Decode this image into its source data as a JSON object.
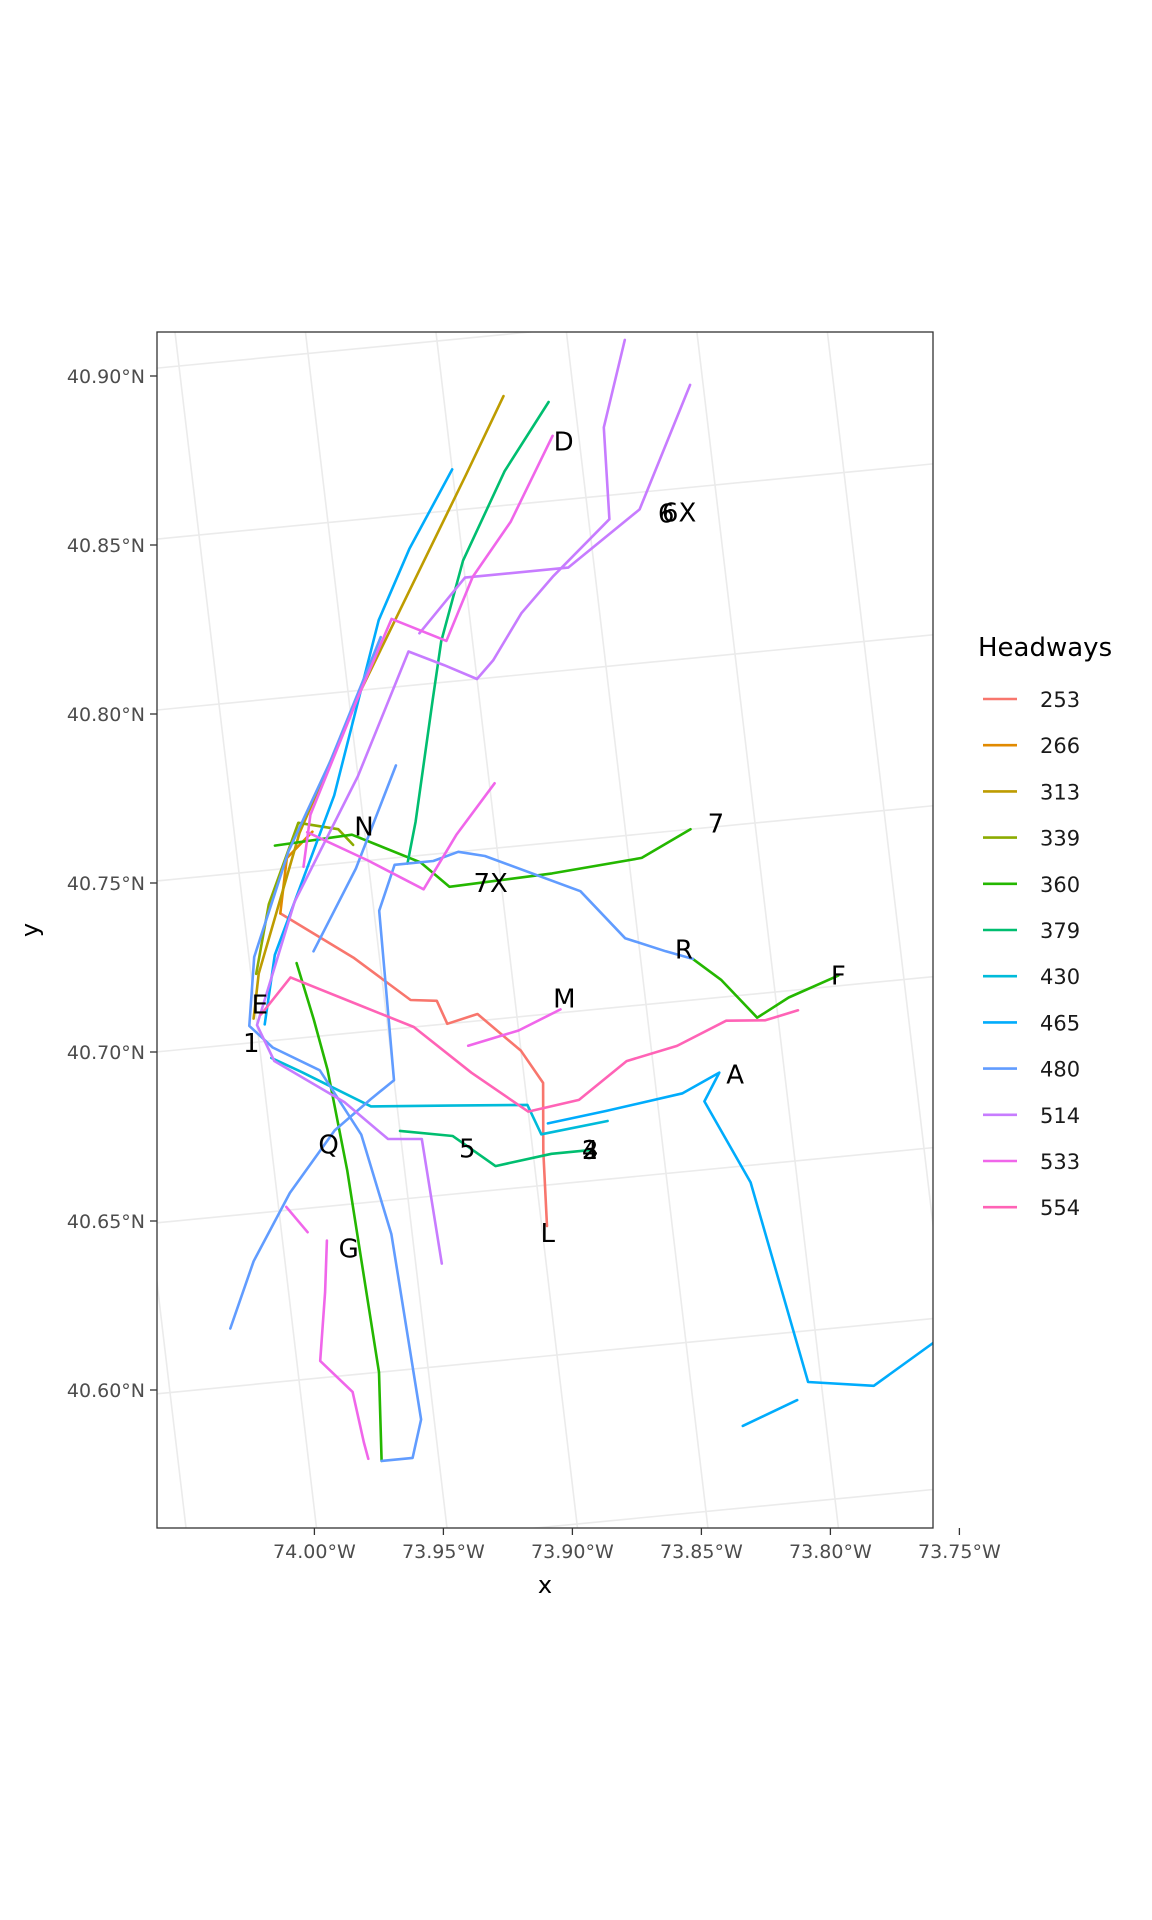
{
  "chart_data": {
    "type": "map",
    "xlabel": "x",
    "ylabel": "y",
    "x_ticks": [
      "74.00°W",
      "73.95°W",
      "73.90°W",
      "73.85°W",
      "73.80°W",
      "73.75°W"
    ],
    "y_ticks": [
      "40.90°N",
      "40.85°N",
      "40.80°N",
      "40.75°N",
      "40.70°N",
      "40.65°N",
      "40.60°N"
    ],
    "grid": true,
    "legend": {
      "title": "Headways",
      "position": "right",
      "entries": [
        {
          "label": "253",
          "color": "#F8766D"
        },
        {
          "label": "266",
          "color": "#E18A00"
        },
        {
          "label": "313",
          "color": "#BE9C00"
        },
        {
          "label": "339",
          "color": "#8CAB00"
        },
        {
          "label": "360",
          "color": "#24B700"
        },
        {
          "label": "379",
          "color": "#00BE70"
        },
        {
          "label": "430",
          "color": "#00BBDA"
        },
        {
          "label": "465",
          "color": "#00ACFC"
        },
        {
          "label": "480",
          "color": "#619CFF"
        },
        {
          "label": "514",
          "color": "#C77CFF"
        },
        {
          "label": "533",
          "color": "#F066EA"
        },
        {
          "label": "554",
          "color": "#FF63B6"
        }
      ]
    },
    "route_labels": [
      {
        "text": "D",
        "lon": -73.856,
        "lat": 40.867
      },
      {
        "text": "6",
        "lon": -73.82,
        "lat": 40.843
      },
      {
        "text": "6X",
        "lon": -73.815,
        "lat": 40.843
      },
      {
        "text": "N",
        "lon": -73.95,
        "lat": 40.76
      },
      {
        "text": "7",
        "lon": -73.815,
        "lat": 40.751
      },
      {
        "text": "7X",
        "lon": -73.904,
        "lat": 40.74
      },
      {
        "text": "R",
        "lon": -73.833,
        "lat": 40.715
      },
      {
        "text": "E",
        "lon": -73.998,
        "lat": 40.711
      },
      {
        "text": "M",
        "lon": -73.881,
        "lat": 40.704
      },
      {
        "text": "F",
        "lon": -73.775,
        "lat": 40.703
      },
      {
        "text": "1",
        "lon": -74.003,
        "lat": 40.7
      },
      {
        "text": "A",
        "lon": -73.819,
        "lat": 40.677
      },
      {
        "text": "Q",
        "lon": -73.978,
        "lat": 40.668
      },
      {
        "text": "5",
        "lon": -73.925,
        "lat": 40.663
      },
      {
        "text": "2",
        "lon": -73.878,
        "lat": 40.659
      },
      {
        "text": "3",
        "lon": -73.878,
        "lat": 40.659
      },
      {
        "text": "4",
        "lon": -73.878,
        "lat": 40.659
      },
      {
        "text": "G",
        "lon": -73.975,
        "lat": 40.637
      },
      {
        "text": "L",
        "lon": -73.898,
        "lat": 40.636
      }
    ],
    "routes": [
      {
        "headway": "253",
        "coords": [
          [
            -73.986,
            40.737
          ],
          [
            -73.96,
            40.722
          ],
          [
            -73.94,
            40.708
          ],
          [
            -73.93,
            40.707
          ],
          [
            -73.927,
            40.7
          ],
          [
            -73.915,
            40.702
          ],
          [
            -73.9,
            40.69
          ],
          [
            -73.893,
            40.68
          ],
          [
            -73.896,
            40.66
          ],
          [
            -73.898,
            40.638
          ]
        ]
      },
      {
        "headway": "266",
        "coords": [
          [
            -73.986,
            40.737
          ],
          [
            -73.981,
            40.753
          ],
          [
            -73.97,
            40.76
          ]
        ]
      },
      {
        "headway": "313",
        "coords": [
          [
            -73.877,
            40.882
          ],
          [
            -73.895,
            40.86
          ],
          [
            -73.92,
            40.83
          ],
          [
            -73.945,
            40.8
          ],
          [
            -73.975,
            40.76
          ],
          [
            -73.997,
            40.72
          ],
          [
            -74.001,
            40.707
          ]
        ]
      },
      {
        "headway": "339",
        "coords": [
          [
            -73.955,
            40.755
          ],
          [
            -73.96,
            40.76
          ],
          [
            -73.975,
            40.763
          ],
          [
            -73.99,
            40.74
          ],
          [
            -73.998,
            40.72
          ]
        ]
      },
      {
        "headway": "360",
        "coords": [
          [
            -73.985,
            40.757
          ],
          [
            -73.955,
            40.758
          ],
          [
            -73.93,
            40.748
          ],
          [
            -73.92,
            40.74
          ],
          [
            -73.88,
            40.741
          ],
          [
            -73.845,
            40.743
          ],
          [
            -73.825,
            40.75
          ]
        ]
      },
      {
        "headway": "360",
        "coords": [
          [
            -73.982,
            40.722
          ],
          [
            -73.978,
            40.705
          ],
          [
            -73.975,
            40.69
          ],
          [
            -73.972,
            40.66
          ],
          [
            -73.969,
            40.6
          ],
          [
            -73.972,
            40.574
          ]
        ]
      },
      {
        "headway": "360",
        "coords": [
          [
            -73.83,
            40.712
          ],
          [
            -73.82,
            40.705
          ],
          [
            -73.808,
            40.693
          ],
          [
            -73.795,
            40.698
          ],
          [
            -73.775,
            40.703
          ]
        ]
      },
      {
        "headway": "379",
        "coords": [
          [
            -73.86,
            40.879
          ],
          [
            -73.88,
            40.86
          ],
          [
            -73.9,
            40.835
          ],
          [
            -73.912,
            40.812
          ],
          [
            -73.918,
            40.795
          ],
          [
            -73.93,
            40.76
          ],
          [
            -73.935,
            40.748
          ]
        ]
      },
      {
        "headway": "379",
        "coords": [
          [
            -73.95,
            40.67
          ],
          [
            -73.93,
            40.667
          ],
          [
            -73.915,
            40.657
          ],
          [
            -73.893,
            40.659
          ],
          [
            -73.878,
            40.659
          ]
        ]
      },
      {
        "headway": "430",
        "coords": [
          [
            -73.996,
            40.695
          ],
          [
            -73.985,
            40.69
          ],
          [
            -73.96,
            40.678
          ],
          [
            -73.93,
            40.676
          ],
          [
            -73.9,
            40.674
          ],
          [
            -73.896,
            40.665
          ],
          [
            -73.87,
            40.667
          ]
        ]
      },
      {
        "headway": "465",
        "coords": [
          [
            -73.9,
            40.862
          ],
          [
            -73.92,
            40.84
          ],
          [
            -73.935,
            40.82
          ],
          [
            -73.95,
            40.79
          ],
          [
            -73.96,
            40.77
          ],
          [
            -73.97,
            40.755
          ],
          [
            -73.99,
            40.725
          ],
          [
            -73.997,
            40.705
          ]
        ]
      },
      {
        "headway": "465",
        "coords": [
          [
            -73.893,
            40.668
          ],
          [
            -73.87,
            40.67
          ],
          [
            -73.84,
            40.673
          ],
          [
            -73.825,
            40.678
          ],
          [
            -73.832,
            40.67
          ],
          [
            -73.818,
            40.645
          ],
          [
            -73.805,
            40.585
          ],
          [
            -73.78,
            40.582
          ],
          [
            -73.755,
            40.593
          ]
        ]
      },
      {
        "headway": "465",
        "coords": [
          [
            -73.81,
            40.58
          ],
          [
            -73.832,
            40.574
          ]
        ]
      },
      {
        "headway": "480",
        "coords": [
          [
            -73.935,
            40.815
          ],
          [
            -73.96,
            40.78
          ],
          [
            -73.98,
            40.755
          ],
          [
            -73.998,
            40.725
          ],
          [
            -74.003,
            40.705
          ],
          [
            -73.995,
            40.698
          ],
          [
            -73.978,
            40.69
          ],
          [
            -73.965,
            40.67
          ],
          [
            -73.958,
            40.64
          ],
          [
            -73.955,
            40.585
          ],
          [
            -73.96,
            40.574
          ],
          [
            -73.972,
            40.574
          ]
        ]
      },
      {
        "headway": "480",
        "coords": [
          [
            -74.024,
            40.617
          ],
          [
            -74.012,
            40.636
          ],
          [
            -73.995,
            40.655
          ],
          [
            -73.975,
            40.672
          ],
          [
            -73.96,
            40.68
          ],
          [
            -73.95,
            40.685
          ],
          [
            -73.948,
            40.735
          ],
          [
            -73.94,
            40.748
          ],
          [
            -73.925,
            40.748
          ],
          [
            -73.915,
            40.75
          ],
          [
            -73.905,
            40.748
          ],
          [
            -73.87,
            40.735
          ],
          [
            -73.855,
            40.72
          ],
          [
            -73.84,
            40.715
          ],
          [
            -73.83,
            40.712
          ]
        ]
      },
      {
        "headway": "480",
        "coords": [
          [
            -73.935,
            40.777
          ],
          [
            -73.955,
            40.748
          ],
          [
            -73.975,
            40.725
          ]
        ]
      },
      {
        "headway": "514",
        "coords": [
          [
            -73.828,
            40.895
          ],
          [
            -73.84,
            40.87
          ],
          [
            -73.842,
            40.843
          ],
          [
            -73.866,
            40.828
          ],
          [
            -73.88,
            40.818
          ],
          [
            -73.893,
            40.805
          ],
          [
            -73.9,
            40.8
          ],
          [
            -73.912,
            40.805
          ],
          [
            -73.925,
            40.81
          ],
          [
            -73.95,
            40.775
          ],
          [
            -73.98,
            40.74
          ],
          [
            -74.0,
            40.705
          ],
          [
            -73.995,
            40.694
          ],
          [
            -73.97,
            40.68
          ],
          [
            -73.955,
            40.668
          ],
          [
            -73.942,
            40.667
          ],
          [
            -73.94,
            40.63
          ]
        ]
      },
      {
        "headway": "514",
        "coords": [
          [
            -73.805,
            40.88
          ],
          [
            -73.83,
            40.845
          ],
          [
            -73.86,
            40.83
          ],
          [
            -73.9,
            40.83
          ],
          [
            -73.92,
            40.815
          ]
        ]
      },
      {
        "headway": "533",
        "coords": [
          [
            -73.86,
            40.869
          ],
          [
            -73.88,
            40.845
          ],
          [
            -73.897,
            40.83
          ],
          [
            -73.91,
            40.812
          ],
          [
            -73.93,
            40.82
          ],
          [
            -73.945,
            40.8
          ],
          [
            -73.97,
            40.765
          ],
          [
            -73.975,
            40.75
          ]
        ]
      },
      {
        "headway": "533",
        "coords": [
          [
            -73.898,
            40.769
          ],
          [
            -73.915,
            40.755
          ],
          [
            -73.93,
            40.74
          ],
          [
            -73.95,
            40.75
          ],
          [
            -73.972,
            40.76
          ]
        ]
      },
      {
        "headway": "533",
        "coords": [
          [
            -73.92,
            40.693
          ],
          [
            -73.9,
            40.696
          ],
          [
            -73.883,
            40.701
          ]
        ]
      },
      {
        "headway": "533",
        "coords": [
          [
            -73.983,
            40.64
          ],
          [
            -73.986,
            40.625
          ],
          [
            -73.991,
            40.605
          ],
          [
            -73.98,
            40.595
          ],
          [
            -73.978,
            40.58
          ],
          [
            -73.977,
            40.575
          ]
        ]
      },
      {
        "headway": "533",
        "coords": [
          [
            -73.997,
            40.651
          ],
          [
            -73.99,
            40.643
          ]
        ]
      },
      {
        "headway": "554",
        "coords": [
          [
            -73.998,
            40.708
          ],
          [
            -73.985,
            40.718
          ],
          [
            -73.96,
            40.708
          ],
          [
            -73.94,
            40.7
          ],
          [
            -73.92,
            40.685
          ],
          [
            -73.9,
            40.672
          ],
          [
            -73.88,
            40.674
          ],
          [
            -73.86,
            40.684
          ],
          [
            -73.84,
            40.687
          ],
          [
            -73.82,
            40.693
          ],
          [
            -73.805,
            40.692
          ],
          [
            -73.792,
            40.694
          ]
        ]
      }
    ]
  }
}
